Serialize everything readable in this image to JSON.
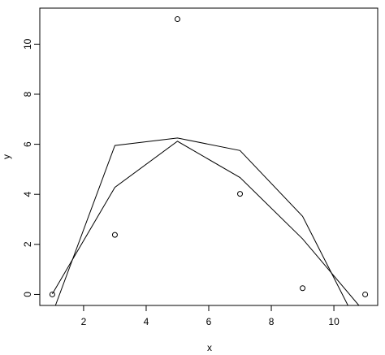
{
  "chart_data": {
    "type": "scatter",
    "title": "",
    "xlabel": "x",
    "ylabel": "y",
    "xlim": [
      0.6,
      11.4
    ],
    "ylim": [
      -0.44,
      11.44
    ],
    "xticks": [
      2,
      4,
      6,
      8,
      10
    ],
    "yticks": [
      0,
      2,
      4,
      6,
      8,
      10
    ],
    "grid": false,
    "colors": {
      "line": "#000000",
      "points": "#000000"
    },
    "points": {
      "x": [
        1,
        3,
        5,
        7,
        9,
        11
      ],
      "y": [
        0.0,
        2.38,
        11.0,
        4.02,
        0.25,
        0.0
      ]
    },
    "series": [
      {
        "x": [
          1.0,
          3.0,
          5.0,
          7.0,
          9.0,
          10.8
        ],
        "y": [
          0.02,
          4.28,
          6.12,
          4.67,
          2.22,
          -0.44
        ]
      },
      {
        "x": [
          1.1,
          3.0,
          5.0,
          7.0,
          9.0,
          10.45
        ],
        "y": [
          -0.44,
          5.95,
          6.25,
          5.75,
          3.12,
          -0.44
        ]
      }
    ]
  }
}
